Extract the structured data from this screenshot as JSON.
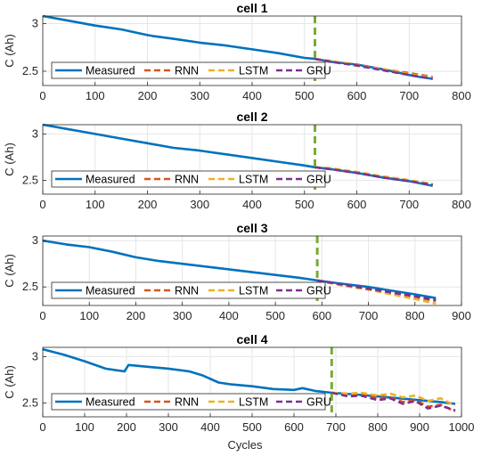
{
  "figure": {
    "xlabel_bottom": "Cycles"
  },
  "legend_entries": [
    {
      "name": "Measured",
      "color": "#0072BD",
      "dash": "solid"
    },
    {
      "name": "RNN",
      "color": "#D95319",
      "dash": "dashed"
    },
    {
      "name": "LSTM",
      "color": "#EDB120",
      "dash": "dashed"
    },
    {
      "name": "GRU",
      "color": "#7E2F8E",
      "dash": "dashed"
    }
  ],
  "marker_color": "#77AC30",
  "chart_data": [
    {
      "type": "line",
      "title": "cell 1",
      "xlabel": "",
      "ylabel": "C (Ah)",
      "xlim": [
        0,
        800
      ],
      "ylim": [
        2.35,
        3.08
      ],
      "xticks": [
        0,
        100,
        200,
        300,
        400,
        500,
        600,
        700,
        800
      ],
      "yticks": [
        2.5,
        3
      ],
      "grid": true,
      "legend_position": "bottom",
      "split_cycle": 520,
      "series": [
        {
          "name": "Measured",
          "x": [
            0,
            50,
            100,
            150,
            200,
            210,
            250,
            300,
            350,
            400,
            450,
            500,
            520,
            550,
            600,
            650,
            700,
            720,
            745
          ],
          "y": [
            3.08,
            3.03,
            2.98,
            2.94,
            2.88,
            2.87,
            2.84,
            2.8,
            2.77,
            2.73,
            2.69,
            2.64,
            2.63,
            2.6,
            2.57,
            2.52,
            2.46,
            2.44,
            2.42
          ]
        },
        {
          "name": "RNN",
          "x": [
            520,
            550,
            600,
            650,
            700,
            745
          ],
          "y": [
            2.63,
            2.6,
            2.57,
            2.52,
            2.48,
            2.44
          ]
        },
        {
          "name": "LSTM",
          "x": [
            520,
            550,
            600,
            650,
            700,
            745
          ],
          "y": [
            2.63,
            2.61,
            2.56,
            2.52,
            2.47,
            2.43
          ]
        },
        {
          "name": "GRU",
          "x": [
            520,
            550,
            600,
            650,
            700,
            745
          ],
          "y": [
            2.63,
            2.6,
            2.56,
            2.51,
            2.46,
            2.42
          ]
        }
      ]
    },
    {
      "type": "line",
      "title": "cell 2",
      "xlabel": "",
      "ylabel": "C (Ah)",
      "xlim": [
        0,
        800
      ],
      "ylim": [
        2.35,
        3.1
      ],
      "xticks": [
        0,
        100,
        200,
        300,
        400,
        500,
        600,
        700,
        800
      ],
      "yticks": [
        2.5,
        3
      ],
      "grid": true,
      "legend_position": "bottom",
      "split_cycle": 520,
      "series": [
        {
          "name": "Measured",
          "x": [
            0,
            50,
            100,
            150,
            200,
            250,
            300,
            350,
            400,
            450,
            500,
            520,
            550,
            600,
            650,
            700,
            745
          ],
          "y": [
            3.1,
            3.05,
            3.0,
            2.95,
            2.9,
            2.85,
            2.82,
            2.78,
            2.74,
            2.7,
            2.66,
            2.64,
            2.62,
            2.58,
            2.53,
            2.49,
            2.44
          ]
        },
        {
          "name": "RNN",
          "x": [
            520,
            550,
            600,
            650,
            700,
            745
          ],
          "y": [
            2.64,
            2.62,
            2.58,
            2.54,
            2.5,
            2.45
          ]
        },
        {
          "name": "LSTM",
          "x": [
            520,
            550,
            600,
            650,
            700,
            745
          ],
          "y": [
            2.64,
            2.63,
            2.59,
            2.54,
            2.5,
            2.46
          ]
        },
        {
          "name": "GRU",
          "x": [
            520,
            550,
            600,
            650,
            700,
            745
          ],
          "y": [
            2.64,
            2.62,
            2.58,
            2.53,
            2.49,
            2.45
          ]
        }
      ]
    },
    {
      "type": "line",
      "title": "cell 3",
      "xlabel": "",
      "ylabel": "C (Ah)",
      "xlim": [
        0,
        900
      ],
      "ylim": [
        2.3,
        3.05
      ],
      "xticks": [
        0,
        100,
        200,
        300,
        400,
        500,
        600,
        700,
        800,
        900
      ],
      "yticks": [
        2.5,
        3
      ],
      "grid": true,
      "legend_position": "bottom",
      "split_cycle": 590,
      "series": [
        {
          "name": "Measured",
          "x": [
            0,
            50,
            100,
            150,
            200,
            250,
            300,
            350,
            400,
            450,
            500,
            550,
            590,
            650,
            700,
            750,
            800,
            845
          ],
          "y": [
            3.0,
            2.96,
            2.93,
            2.88,
            2.82,
            2.78,
            2.75,
            2.72,
            2.69,
            2.66,
            2.63,
            2.6,
            2.57,
            2.53,
            2.5,
            2.46,
            2.42,
            2.38
          ]
        },
        {
          "name": "RNN",
          "x": [
            590,
            650,
            700,
            750,
            800,
            845
          ],
          "y": [
            2.57,
            2.52,
            2.48,
            2.43,
            2.39,
            2.35
          ]
        },
        {
          "name": "LSTM",
          "x": [
            590,
            650,
            700,
            750,
            800,
            845
          ],
          "y": [
            2.57,
            2.51,
            2.47,
            2.42,
            2.37,
            2.32
          ]
        },
        {
          "name": "GRU",
          "x": [
            590,
            650,
            700,
            750,
            800,
            845
          ],
          "y": [
            2.57,
            2.52,
            2.48,
            2.44,
            2.4,
            2.36
          ]
        }
      ]
    },
    {
      "type": "line",
      "title": "cell 4",
      "xlabel": "Cycles",
      "ylabel": "C (Ah)",
      "xlim": [
        0,
        1000
      ],
      "ylim": [
        2.35,
        3.1
      ],
      "xticks": [
        0,
        100,
        200,
        300,
        400,
        500,
        600,
        700,
        800,
        900,
        1000
      ],
      "yticks": [
        2.5,
        3
      ],
      "grid": true,
      "legend_position": "bottom",
      "split_cycle": 690,
      "series": [
        {
          "name": "Measured",
          "x": [
            0,
            50,
            100,
            150,
            195,
            205,
            250,
            300,
            350,
            380,
            420,
            450,
            500,
            550,
            600,
            620,
            650,
            690,
            750,
            800,
            850,
            900,
            950,
            985
          ],
          "y": [
            3.08,
            3.02,
            2.95,
            2.87,
            2.84,
            2.91,
            2.89,
            2.87,
            2.84,
            2.8,
            2.72,
            2.7,
            2.68,
            2.65,
            2.64,
            2.66,
            2.63,
            2.61,
            2.59,
            2.57,
            2.55,
            2.53,
            2.51,
            2.49
          ]
        },
        {
          "name": "RNN",
          "x": [
            690,
            730,
            760,
            800,
            830,
            860,
            890,
            920,
            950,
            985
          ],
          "y": [
            2.61,
            2.58,
            2.59,
            2.55,
            2.56,
            2.51,
            2.53,
            2.46,
            2.48,
            2.41
          ]
        },
        {
          "name": "LSTM",
          "x": [
            690,
            730,
            760,
            800,
            830,
            860,
            890,
            920,
            950,
            985
          ],
          "y": [
            2.61,
            2.6,
            2.61,
            2.58,
            2.6,
            2.56,
            2.58,
            2.52,
            2.55,
            2.47
          ]
        },
        {
          "name": "GRU",
          "x": [
            690,
            730,
            760,
            800,
            830,
            860,
            890,
            920,
            950,
            985
          ],
          "y": [
            2.61,
            2.57,
            2.58,
            2.53,
            2.55,
            2.49,
            2.52,
            2.44,
            2.47,
            2.42
          ]
        }
      ]
    }
  ]
}
